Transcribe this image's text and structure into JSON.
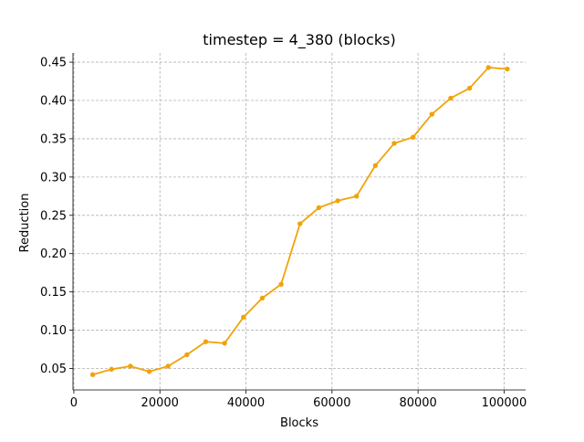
{
  "chart_data": {
    "type": "line",
    "title": "timestep = 4_380 (blocks)",
    "xlabel": "Blocks",
    "ylabel": "Reduction",
    "xlim": [
      -200,
      105000
    ],
    "ylim": [
      0.022,
      0.462
    ],
    "xticks": [
      0,
      20000,
      40000,
      60000,
      80000,
      100000
    ],
    "xtick_labels": [
      "0",
      "20000",
      "40000",
      "60000",
      "80000",
      "100000"
    ],
    "yticks": [
      0.05,
      0.1,
      0.15,
      0.2,
      0.25,
      0.3,
      0.35,
      0.4,
      0.45
    ],
    "ytick_labels": [
      "0.05",
      "0.10",
      "0.15",
      "0.20",
      "0.25",
      "0.30",
      "0.35",
      "0.40",
      "0.45"
    ],
    "grid": true,
    "series": [
      {
        "color": "#f0a30a",
        "x": [
          4380,
          8760,
          13140,
          17520,
          21900,
          26280,
          30660,
          35040,
          39420,
          43800,
          48180,
          52560,
          56940,
          61320,
          65700,
          70080,
          74460,
          78840,
          83220,
          87600,
          91980,
          96360,
          100740
        ],
        "y": [
          0.042,
          0.049,
          0.053,
          0.046,
          0.053,
          0.068,
          0.085,
          0.083,
          0.117,
          0.142,
          0.16,
          0.239,
          0.26,
          0.269,
          0.275,
          0.315,
          0.344,
          0.352,
          0.382,
          0.403,
          0.416,
          0.443,
          0.441
        ]
      }
    ]
  }
}
